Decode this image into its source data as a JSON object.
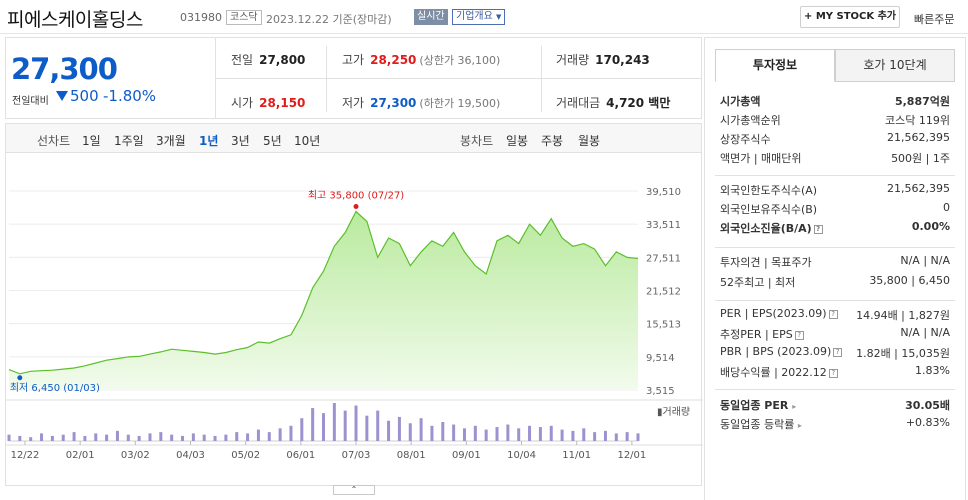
{
  "header": {
    "company": "피에스케이홀딩스",
    "code": "031980",
    "market": "코스닥",
    "date": "2023.12.22  기준(장마감)",
    "realtime": "실시간",
    "overview": "기업개요",
    "mystock": "+ MY STOCK 추가",
    "quick_order": "빠른주문"
  },
  "price": {
    "current": "27,300",
    "change_label": "전일대비",
    "change": "500",
    "change_pct": "-1.80%"
  },
  "stats": {
    "prev_close_label": "전일",
    "prev_close": "27,800",
    "high_label": "고가",
    "high": "28,250",
    "upper_limit": "(상한가 36,100)",
    "volume_label": "거래량",
    "volume": "170,243",
    "open_label": "시가",
    "open": "28,150",
    "low_label": "저가",
    "low": "27,300",
    "lower_limit": "(하한가 19,500)",
    "amount_label": "거래대금",
    "amount": "4,720 백만"
  },
  "period_bar": {
    "line_chart": "선차트",
    "periods": [
      "1일",
      "1주일",
      "3개월",
      "1년",
      "3년",
      "5년",
      "10년"
    ],
    "selected": "1년",
    "bar_chart": "봉차트",
    "bar_periods": [
      "일봉",
      "주봉",
      "월봉"
    ]
  },
  "chart_data": {
    "type": "area",
    "x_ticks": [
      "12/22",
      "02/01",
      "03/02",
      "04/03",
      "05/02",
      "06/01",
      "07/03",
      "08/01",
      "09/01",
      "10/04",
      "11/01",
      "12/01"
    ],
    "y_ticks": [
      39510,
      33511,
      27511,
      21512,
      15513,
      9514,
      3515
    ],
    "ylim": [
      3515,
      39510
    ],
    "max_label": "최고 35,800 (07/27)",
    "min_label": "최저 6,450 (01/03)",
    "volume_label": "거래량",
    "series": [
      {
        "values": [
          7200,
          6450,
          6900,
          7000,
          7100,
          7300,
          7500,
          7900,
          8400,
          8900,
          9200,
          9500,
          9600,
          10000,
          10400,
          10900,
          10700,
          10500,
          10300,
          10000,
          10300,
          10800,
          11200,
          12200,
          12000,
          12800,
          13500,
          17000,
          22000,
          25000,
          29500,
          32000,
          35800,
          34000,
          27500,
          31000,
          30000,
          26000,
          28500,
          30500,
          29500,
          32000,
          28500,
          26000,
          24500,
          30500,
          31500,
          30000,
          33500,
          31500,
          34500,
          31000,
          29500,
          30000,
          29000,
          26000,
          28500,
          27500,
          27300
        ]
      }
    ],
    "volume": [
      5,
      4,
      3,
      6,
      4,
      5,
      7,
      4,
      6,
      5,
      8,
      5,
      4,
      6,
      7,
      5,
      4,
      6,
      5,
      4,
      5,
      7,
      6,
      9,
      7,
      10,
      12,
      18,
      26,
      22,
      30,
      24,
      28,
      20,
      24,
      16,
      19,
      14,
      18,
      12,
      15,
      13,
      10,
      12,
      9,
      11,
      13,
      10,
      12,
      11,
      12,
      9,
      8,
      10,
      7,
      8,
      6,
      7,
      6
    ]
  },
  "sidebar": {
    "tab_active": "투자정보",
    "tab_other": "호가 10단계",
    "market_cap_label": "시가총액",
    "market_cap": "5,887억원",
    "cap_rank_label": "시가총액순위",
    "cap_rank": "코스닥 119위",
    "shares_label": "상장주식수",
    "shares": "21,562,395",
    "par_label": "액면가 | 매매단위",
    "par": "500원 | 1주",
    "foreign_limit_label": "외국인한도주식수(A)",
    "foreign_limit": "21,562,395",
    "foreign_hold_label": "외국인보유주식수(B)",
    "foreign_hold": "0",
    "foreign_ratio_label": "외국인소진율(B/A)",
    "foreign_ratio": "0.00%",
    "opinion_label": "투자의견 | 목표주가",
    "opinion": "N/A | N/A",
    "w52_label": "52주최고 | 최저",
    "w52": "35,800 | 6,450",
    "per_label": "PER | EPS(2023.09)",
    "per": "14.94배 | 1,827원",
    "est_per_label": "추정PER | EPS",
    "est_per": "N/A | N/A",
    "pbr_label": "PBR | BPS (2023.09)",
    "pbr": "1.82배 | 15,035원",
    "div_label": "배당수익률 | 2022.12",
    "div": "1.83%",
    "sector_per_label": "동일업종 PER",
    "sector_per": "30.05배",
    "sector_rate_label": "동일업종 등락률",
    "sector_rate": "+0.83%"
  }
}
